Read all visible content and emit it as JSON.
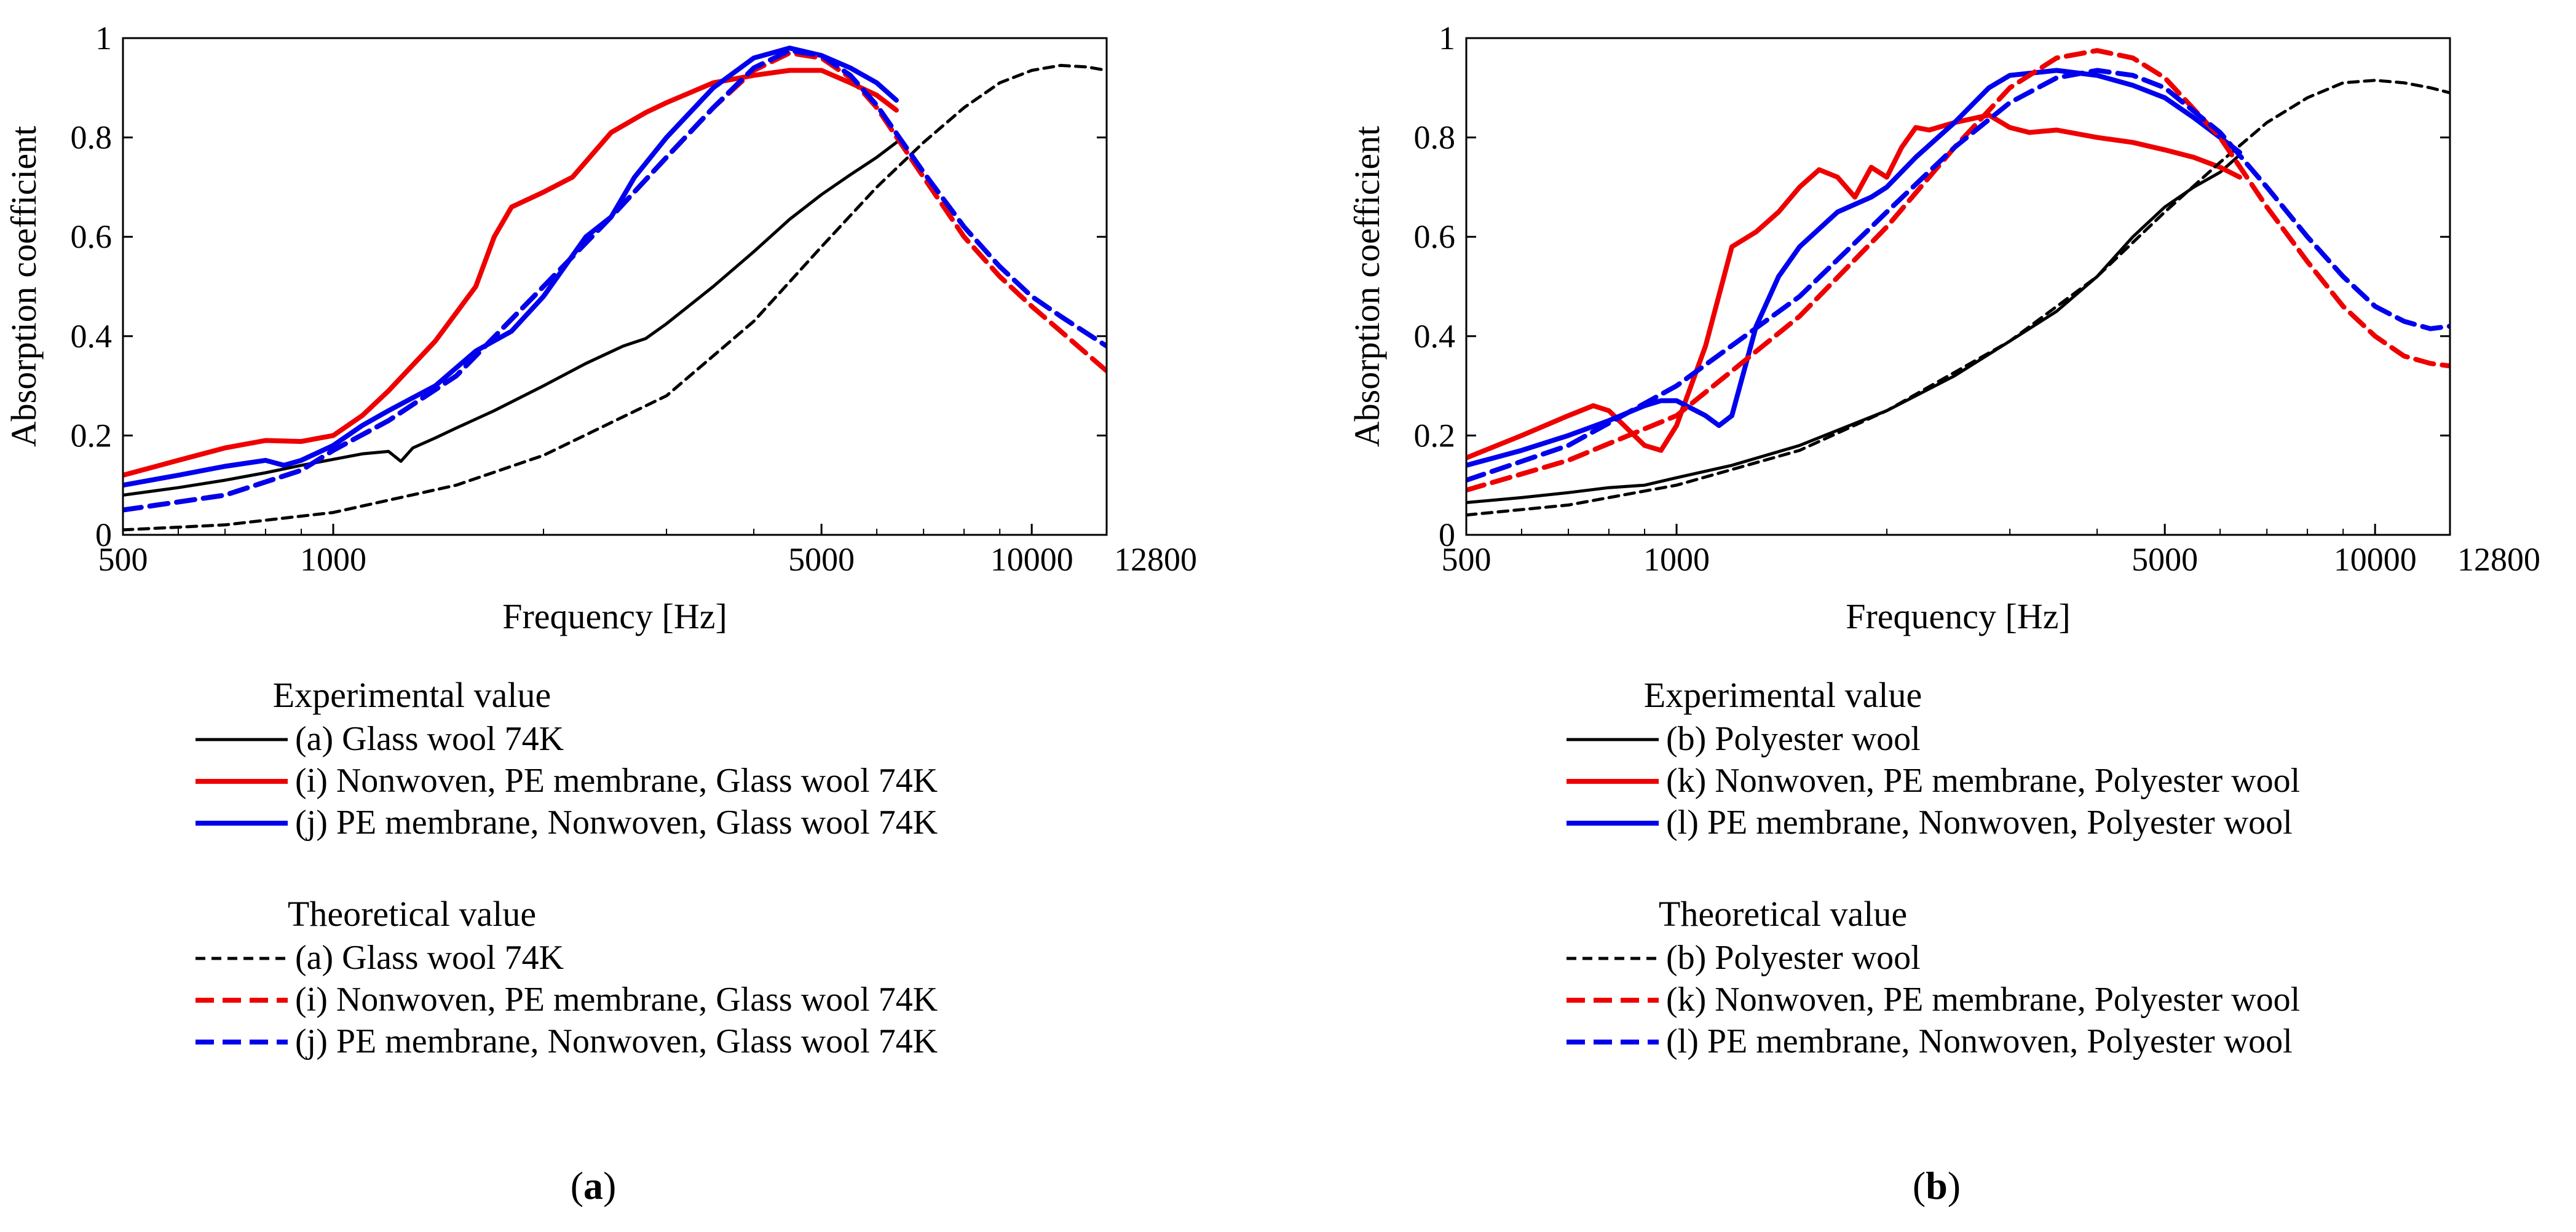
{
  "chart_data": [
    {
      "type": "line",
      "panel_label": "(a)",
      "xlabel": "Frequency [Hz]",
      "ylabel": "Absorption coefficient",
      "x_scale": "log",
      "xlim": [
        500,
        12800
      ],
      "ylim": [
        0,
        1
      ],
      "xticks": [
        500,
        1000,
        5000,
        10000,
        12800
      ],
      "xtick_labels": [
        "500",
        "1000",
        "5000",
        "10000",
        "12800"
      ],
      "yticks": [
        0,
        0.2,
        0.4,
        0.6,
        0.8,
        1
      ],
      "ytick_labels": [
        "0",
        "0.2",
        "0.4",
        "0.6",
        "0.8",
        "1"
      ],
      "grid": false,
      "legend_groups": [
        {
          "heading": "Experimental value",
          "style": "solid",
          "items": [
            "(a) Glass wool 74K",
            "(i) Nonwoven, PE membrane, Glass wool 74K",
            "(j) PE membrane, Nonwoven, Glass wool 74K"
          ]
        },
        {
          "heading": "Theoretical value",
          "style": "dashed",
          "items": [
            "(a) Glass wool 74K",
            "(i) Nonwoven, PE membrane, Glass wool 74K",
            "(j) PE membrane, Nonwoven, Glass wool 74K"
          ]
        }
      ],
      "series": [
        {
          "name": "(a) Glass wool 74K",
          "group": "Experimental value",
          "color": "#000000",
          "dash": "solid",
          "x": [
            500,
            600,
            700,
            800,
            900,
            1000,
            1100,
            1200,
            1250,
            1300,
            1400,
            1500,
            1700,
            2000,
            2300,
            2600,
            2800,
            3000,
            3500,
            4000,
            4500,
            5000,
            5500,
            6000,
            6400
          ],
          "y": [
            0.08,
            0.095,
            0.11,
            0.125,
            0.14,
            0.152,
            0.163,
            0.168,
            0.148,
            0.175,
            0.195,
            0.215,
            0.25,
            0.3,
            0.345,
            0.38,
            0.395,
            0.425,
            0.5,
            0.57,
            0.635,
            0.685,
            0.725,
            0.76,
            0.79
          ]
        },
        {
          "name": "(i) Nonwoven, PE membrane, Glass wool 74K",
          "group": "Experimental value",
          "color": "#ee0000",
          "dash": "solid",
          "x": [
            500,
            600,
            700,
            800,
            900,
            1000,
            1100,
            1200,
            1400,
            1600,
            1700,
            1800,
            2000,
            2200,
            2500,
            2800,
            3000,
            3500,
            4000,
            4500,
            5000,
            5500,
            6000,
            6400
          ],
          "y": [
            0.12,
            0.15,
            0.175,
            0.19,
            0.188,
            0.2,
            0.24,
            0.29,
            0.39,
            0.5,
            0.6,
            0.66,
            0.69,
            0.72,
            0.81,
            0.85,
            0.87,
            0.91,
            0.925,
            0.935,
            0.935,
            0.91,
            0.885,
            0.855
          ]
        },
        {
          "name": "(j) PE membrane, Nonwoven, Glass wool 74K",
          "group": "Experimental value",
          "color": "#0000ee",
          "dash": "solid",
          "x": [
            500,
            600,
            700,
            800,
            850,
            900,
            1000,
            1100,
            1200,
            1400,
            1600,
            1800,
            2000,
            2300,
            2500,
            2700,
            3000,
            3500,
            4000,
            4500,
            5000,
            5500,
            6000,
            6400
          ],
          "y": [
            0.1,
            0.12,
            0.138,
            0.15,
            0.14,
            0.15,
            0.18,
            0.22,
            0.25,
            0.3,
            0.37,
            0.41,
            0.48,
            0.6,
            0.64,
            0.72,
            0.8,
            0.9,
            0.96,
            0.98,
            0.965,
            0.94,
            0.91,
            0.875
          ]
        },
        {
          "name": "(a) Glass wool 74K",
          "group": "Theoretical value",
          "color": "#000000",
          "dash": "dashed",
          "x": [
            500,
            700,
            1000,
            1500,
            2000,
            3000,
            4000,
            5000,
            6000,
            7000,
            8000,
            9000,
            10000,
            11000,
            12000,
            12800
          ],
          "y": [
            0.01,
            0.02,
            0.045,
            0.1,
            0.16,
            0.28,
            0.43,
            0.58,
            0.7,
            0.79,
            0.86,
            0.91,
            0.935,
            0.945,
            0.942,
            0.935
          ]
        },
        {
          "name": "(i) Nonwoven, PE membrane, Glass wool 74K",
          "group": "Theoretical value",
          "color": "#ee0000",
          "dash": "dashed",
          "x": [
            500,
            700,
            900,
            1000,
            1200,
            1500,
            2000,
            2500,
            3000,
            3500,
            4000,
            4500,
            5000,
            5500,
            6000,
            7000,
            8000,
            9000,
            10000,
            11000,
            12800
          ],
          "y": [
            0.05,
            0.08,
            0.13,
            0.17,
            0.23,
            0.32,
            0.5,
            0.64,
            0.76,
            0.86,
            0.935,
            0.97,
            0.96,
            0.92,
            0.86,
            0.72,
            0.6,
            0.52,
            0.46,
            0.41,
            0.33
          ]
        },
        {
          "name": "(j) PE membrane, Nonwoven, Glass wool 74K",
          "group": "Theoretical value",
          "color": "#0000ee",
          "dash": "dashed",
          "x": [
            500,
            700,
            900,
            1000,
            1200,
            1500,
            2000,
            2500,
            3000,
            3500,
            4000,
            4500,
            5000,
            5500,
            6000,
            7000,
            8000,
            9000,
            10000,
            11000,
            12800
          ],
          "y": [
            0.05,
            0.08,
            0.13,
            0.17,
            0.23,
            0.32,
            0.5,
            0.64,
            0.76,
            0.86,
            0.94,
            0.975,
            0.965,
            0.925,
            0.865,
            0.73,
            0.62,
            0.54,
            0.48,
            0.44,
            0.38
          ]
        }
      ]
    },
    {
      "type": "line",
      "panel_label": "(b)",
      "xlabel": "Frequency [Hz]",
      "ylabel": "Absorption coefficient",
      "x_scale": "log",
      "xlim": [
        500,
        12800
      ],
      "ylim": [
        0,
        1
      ],
      "xticks": [
        500,
        1000,
        5000,
        10000,
        12800
      ],
      "xtick_labels": [
        "500",
        "1000",
        "5000",
        "10000",
        "12800"
      ],
      "yticks": [
        0,
        0.2,
        0.4,
        0.6,
        0.8,
        1
      ],
      "ytick_labels": [
        "0",
        "0.2",
        "0.4",
        "0.6",
        "0.8",
        "1"
      ],
      "grid": false,
      "legend_groups": [
        {
          "heading": "Experimental value",
          "style": "solid",
          "items": [
            "(b) Polyester wool",
            "(k) Nonwoven, PE membrane, Polyester wool",
            "(l) PE membrane, Nonwoven, Polyester wool"
          ]
        },
        {
          "heading": "Theoretical value",
          "style": "dashed",
          "items": [
            "(b) Polyester wool",
            "(k) Nonwoven, PE membrane, Polyester wool",
            "(l) PE membrane, Nonwoven, Polyester wool"
          ]
        }
      ],
      "series": [
        {
          "name": "(b) Polyester wool",
          "group": "Experimental value",
          "color": "#000000",
          "dash": "solid",
          "x": [
            500,
            600,
            700,
            800,
            900,
            1000,
            1200,
            1500,
            2000,
            2500,
            3000,
            3500,
            4000,
            4500,
            5000,
            5500,
            6000,
            6400
          ],
          "y": [
            0.065,
            0.075,
            0.085,
            0.095,
            0.1,
            0.115,
            0.14,
            0.18,
            0.25,
            0.32,
            0.39,
            0.45,
            0.52,
            0.6,
            0.66,
            0.7,
            0.73,
            0.765
          ]
        },
        {
          "name": "(k) Nonwoven, PE membrane, Polyester wool",
          "group": "Experimental value",
          "color": "#ee0000",
          "dash": "solid",
          "x": [
            500,
            600,
            700,
            760,
            800,
            900,
            950,
            1000,
            1100,
            1200,
            1300,
            1400,
            1500,
            1600,
            1700,
            1800,
            1900,
            2000,
            2100,
            2200,
            2300,
            2500,
            2800,
            3000,
            3200,
            3500,
            4000,
            4500,
            5000,
            5500,
            6000,
            6400
          ],
          "y": [
            0.155,
            0.2,
            0.24,
            0.26,
            0.25,
            0.18,
            0.17,
            0.22,
            0.38,
            0.58,
            0.61,
            0.65,
            0.7,
            0.735,
            0.72,
            0.68,
            0.74,
            0.72,
            0.78,
            0.82,
            0.815,
            0.83,
            0.845,
            0.82,
            0.81,
            0.815,
            0.8,
            0.79,
            0.775,
            0.76,
            0.74,
            0.72
          ]
        },
        {
          "name": "(l) PE membrane, Nonwoven, Polyester wool",
          "group": "Experimental value",
          "color": "#0000ee",
          "dash": "solid",
          "x": [
            500,
            600,
            700,
            800,
            900,
            950,
            1000,
            1100,
            1150,
            1200,
            1300,
            1400,
            1500,
            1700,
            1900,
            2000,
            2200,
            2500,
            2800,
            3000,
            3500,
            4000,
            4500,
            5000,
            5500,
            6000,
            6400
          ],
          "y": [
            0.14,
            0.17,
            0.2,
            0.23,
            0.26,
            0.27,
            0.27,
            0.24,
            0.22,
            0.24,
            0.42,
            0.52,
            0.58,
            0.65,
            0.68,
            0.7,
            0.76,
            0.83,
            0.9,
            0.925,
            0.935,
            0.925,
            0.905,
            0.88,
            0.84,
            0.8,
            0.77
          ]
        },
        {
          "name": "(b) Polyester wool",
          "group": "Theoretical value",
          "color": "#000000",
          "dash": "dashed",
          "x": [
            500,
            700,
            1000,
            1500,
            2000,
            3000,
            4000,
            5000,
            6000,
            7000,
            8000,
            9000,
            10000,
            11000,
            12000,
            12800
          ],
          "y": [
            0.04,
            0.06,
            0.1,
            0.17,
            0.25,
            0.39,
            0.52,
            0.65,
            0.75,
            0.83,
            0.88,
            0.91,
            0.915,
            0.91,
            0.9,
            0.89
          ]
        },
        {
          "name": "(k) Nonwoven, PE membrane, Polyester wool",
          "group": "Theoretical value",
          "color": "#ee0000",
          "dash": "dashed",
          "x": [
            500,
            700,
            1000,
            1500,
            2000,
            2500,
            3000,
            3500,
            4000,
            4500,
            5000,
            6000,
            7000,
            8000,
            9000,
            10000,
            11000,
            12000,
            12800
          ],
          "y": [
            0.09,
            0.15,
            0.24,
            0.44,
            0.62,
            0.78,
            0.9,
            0.96,
            0.975,
            0.96,
            0.92,
            0.8,
            0.66,
            0.55,
            0.46,
            0.4,
            0.36,
            0.345,
            0.34
          ]
        },
        {
          "name": "(l) PE membrane, Nonwoven, Polyester wool",
          "group": "Theoretical value",
          "color": "#0000ee",
          "dash": "dashed",
          "x": [
            500,
            700,
            1000,
            1500,
            2000,
            2500,
            3000,
            3500,
            4000,
            4500,
            5000,
            6000,
            7000,
            8000,
            9000,
            10000,
            11000,
            12000,
            12800
          ],
          "y": [
            0.11,
            0.18,
            0.3,
            0.48,
            0.65,
            0.78,
            0.87,
            0.92,
            0.935,
            0.925,
            0.9,
            0.81,
            0.7,
            0.6,
            0.52,
            0.46,
            0.43,
            0.415,
            0.42
          ]
        }
      ]
    }
  ]
}
